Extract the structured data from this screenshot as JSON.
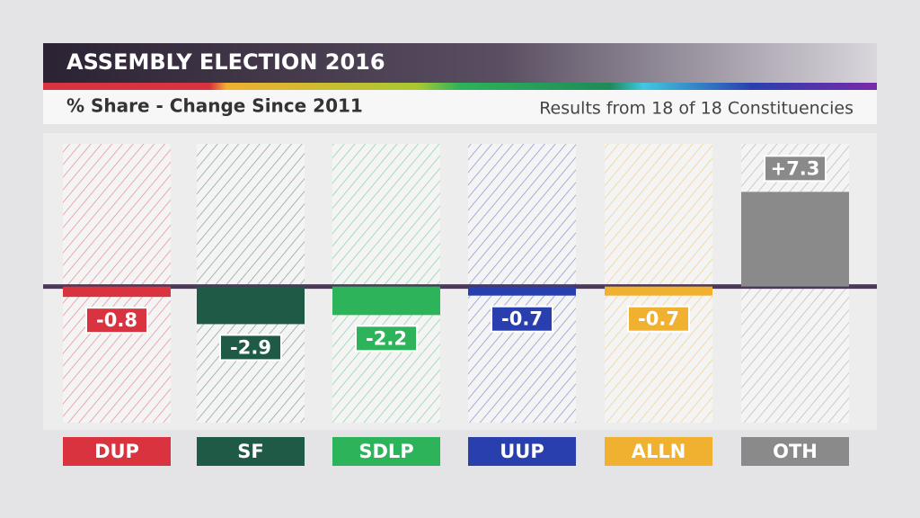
{
  "chart_data": {
    "type": "bar",
    "title": "ASSEMBLY ELECTION 2016",
    "subtitle": "% Share - Change Since 2011",
    "note": "Results from 18 of 18 Constituencies",
    "categories": [
      "DUP",
      "SF",
      "SDLP",
      "UUP",
      "ALLN",
      "OTH"
    ],
    "values": [
      -0.8,
      -2.9,
      -2.2,
      -0.7,
      -0.7,
      7.3
    ],
    "value_labels": [
      "-0.8",
      "-2.9",
      "-2.2",
      "-0.7",
      "-0.7",
      "+7.3"
    ],
    "colors": [
      "#d9333f",
      "#1e5a46",
      "#2db45a",
      "#2a3fae",
      "#f0b030",
      "#8a8a8a"
    ],
    "ylim": [
      -10.5,
      11
    ]
  }
}
